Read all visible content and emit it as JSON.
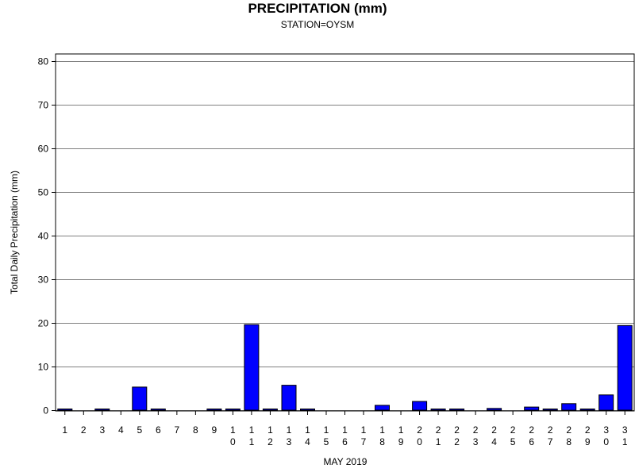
{
  "chart_data": {
    "type": "bar",
    "title": "PRECIPITATION (mm)",
    "subtitle": "STATION=OYSM",
    "xlabel": "MAY 2019",
    "ylabel": "Total Daily Precipitation (mm)",
    "ylim": [
      0,
      80
    ],
    "yticks": [
      0,
      10,
      20,
      30,
      40,
      50,
      60,
      70,
      80
    ],
    "grid": true,
    "categories": [
      "1",
      "2",
      "3",
      "4",
      "5",
      "6",
      "7",
      "8",
      "9",
      "10",
      "11",
      "12",
      "13",
      "14",
      "15",
      "16",
      "17",
      "18",
      "19",
      "20",
      "21",
      "22",
      "23",
      "24",
      "25",
      "26",
      "27",
      "28",
      "29",
      "30",
      "31"
    ],
    "values": [
      0.1,
      0,
      0.1,
      0,
      5.3,
      0.1,
      0,
      0,
      0.1,
      0.1,
      19.6,
      0.1,
      5.7,
      0.1,
      0,
      0,
      0,
      1.1,
      0,
      2.0,
      0.1,
      0.1,
      0,
      0.4,
      0,
      0.7,
      0.1,
      1.5,
      0.1,
      3.5,
      19.4
    ],
    "bar_color": "#0000ff"
  }
}
